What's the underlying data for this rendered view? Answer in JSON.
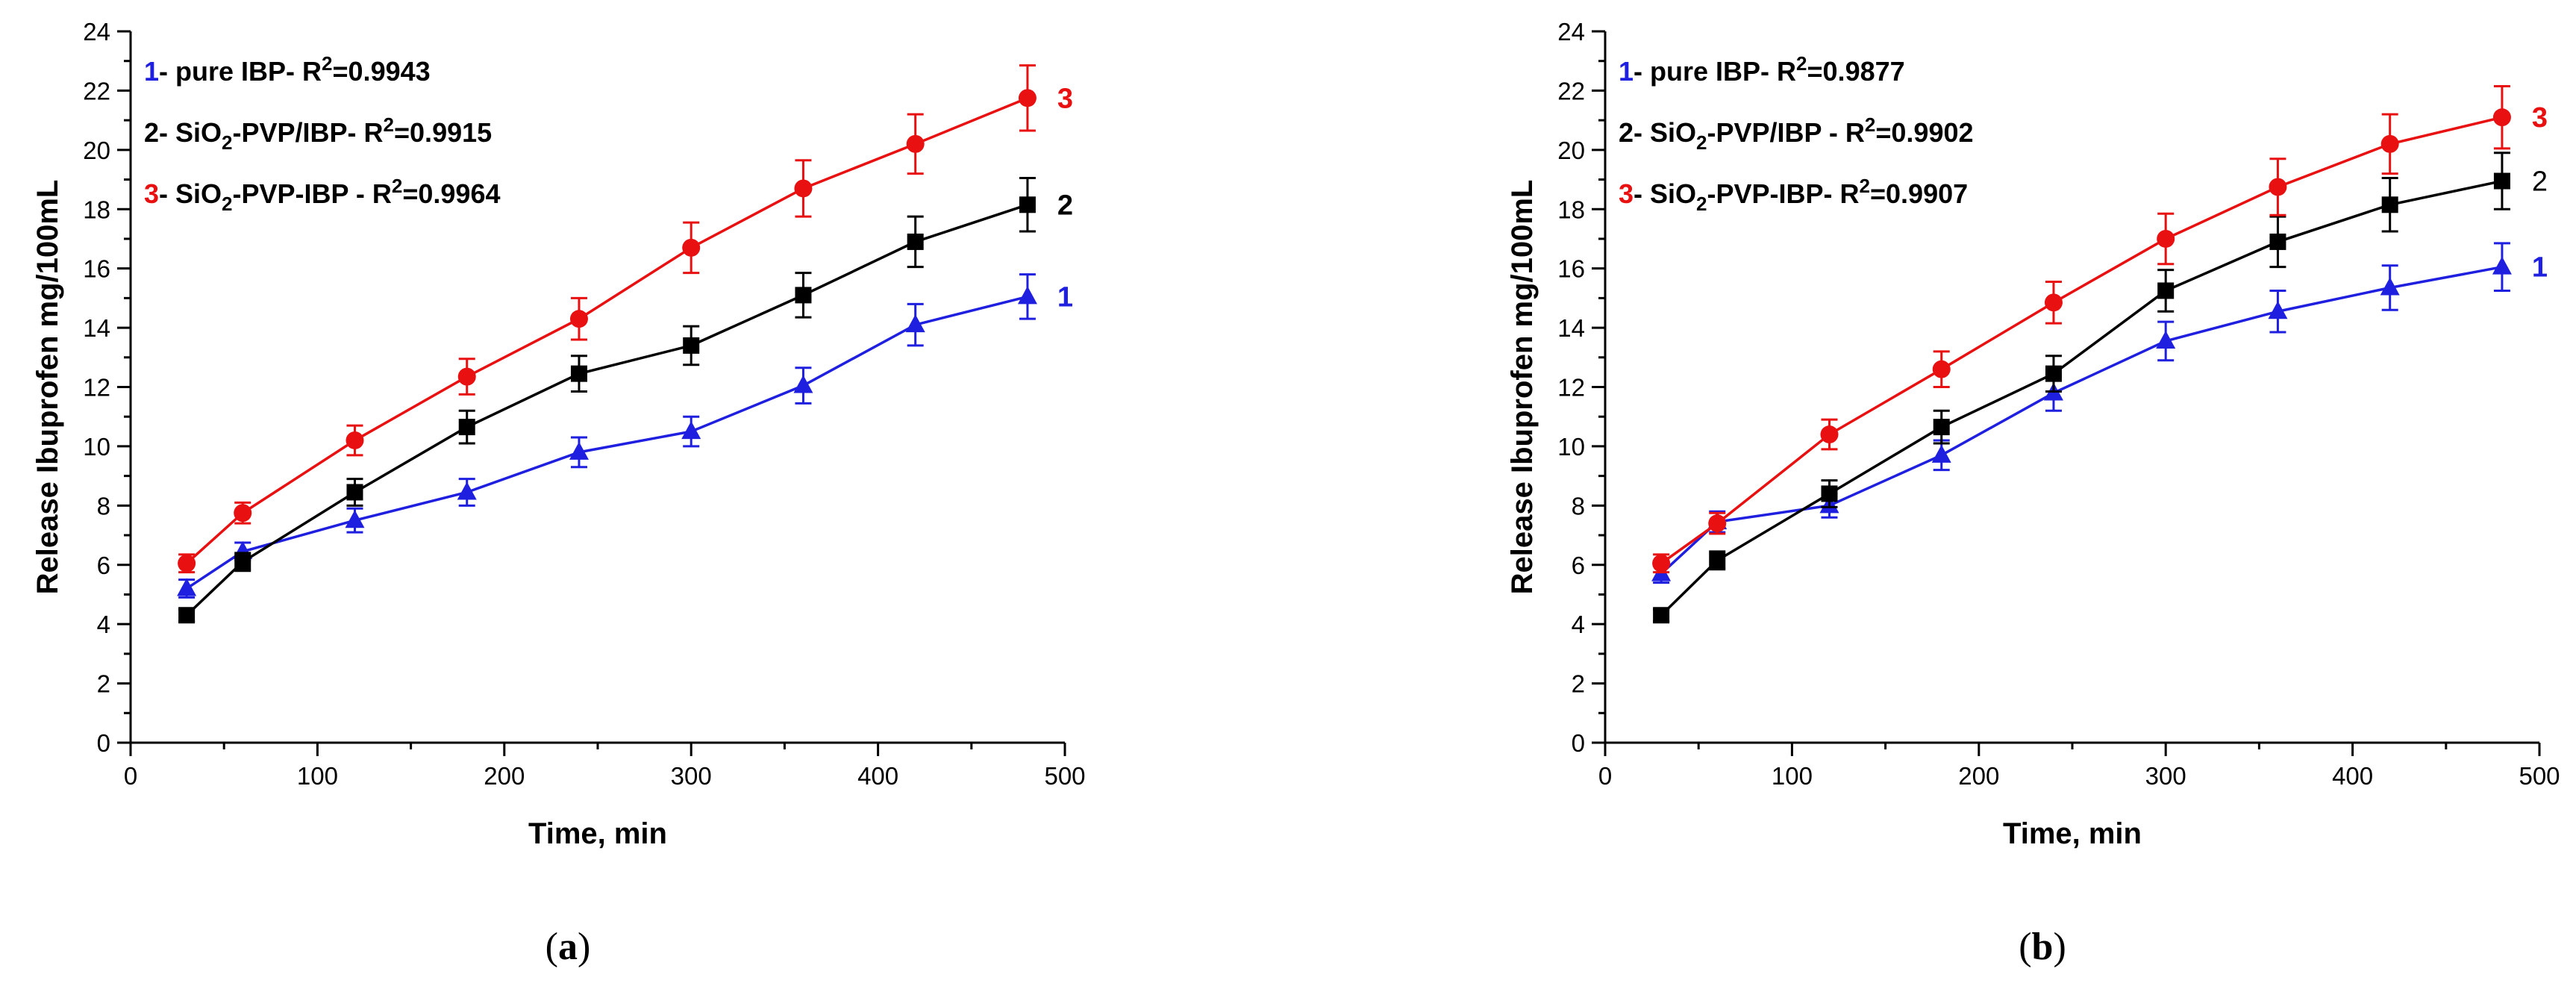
{
  "chart_data": [
    {
      "type": "line",
      "panel_label": "a",
      "xlabel": "Time, min",
      "ylabel": "Release Ibuprofen mg/100mL",
      "xlim": [
        0,
        500
      ],
      "ylim": [
        0,
        24
      ],
      "x_ticks": [
        "0",
        "100",
        "200",
        "300",
        "400",
        "500"
      ],
      "y_ticks": [
        "0",
        "2",
        "4",
        "6",
        "8",
        "10",
        "12",
        "14",
        "16",
        "18",
        "20",
        "22",
        "24"
      ],
      "x": [
        30,
        60,
        120,
        180,
        240,
        300,
        360,
        420,
        480
      ],
      "legend": [
        {
          "num": "1",
          "pre": "- pure IBP- R",
          "sup": "2",
          "post": "=0.9943",
          "num_color": "#1f1fe0"
        },
        {
          "num": "2",
          "pre": "- SiO",
          "sub": "2",
          "mid": "-PVP/IBP- R",
          "sup": "2",
          "post": "=0.9915",
          "num_color": "#000000"
        },
        {
          "num": "3",
          "pre": "- SiO",
          "sub": "2",
          "mid": "-PVP-IBP - R",
          "sup": "2",
          "post": "=0.9964",
          "num_color": "#e81010"
        }
      ],
      "series": [
        {
          "name": "1",
          "end_label": "1",
          "marker": "triangle",
          "color": "#1f1fe0",
          "values": [
            5.2,
            6.45,
            7.5,
            8.45,
            9.8,
            10.5,
            12.05,
            14.1,
            15.05
          ],
          "errors": [
            0.3,
            0.3,
            0.4,
            0.45,
            0.5,
            0.5,
            0.6,
            0.7,
            0.75
          ]
        },
        {
          "name": "2",
          "end_label": "2",
          "marker": "square",
          "color": "#000000",
          "values": [
            4.3,
            6.1,
            8.45,
            10.65,
            12.45,
            13.4,
            15.1,
            16.9,
            18.15
          ],
          "errors": [
            0.2,
            0.3,
            0.45,
            0.55,
            0.6,
            0.65,
            0.75,
            0.85,
            0.9
          ]
        },
        {
          "name": "3",
          "end_label": "3",
          "marker": "circle",
          "color": "#e81010",
          "values": [
            6.05,
            7.75,
            10.2,
            12.35,
            14.3,
            16.7,
            18.7,
            20.2,
            21.75
          ],
          "errors": [
            0.3,
            0.35,
            0.5,
            0.6,
            0.7,
            0.85,
            0.95,
            1.0,
            1.1
          ]
        }
      ]
    },
    {
      "type": "line",
      "panel_label": "b",
      "xlabel": "Time, min",
      "ylabel": "Release Ibuprofen mg/100mL",
      "xlim": [
        0,
        500
      ],
      "ylim": [
        0,
        24
      ],
      "x_ticks": [
        "0",
        "100",
        "200",
        "300",
        "400",
        "500"
      ],
      "y_ticks": [
        "0",
        "2",
        "4",
        "6",
        "8",
        "10",
        "12",
        "14",
        "16",
        "18",
        "20",
        "22",
        "24"
      ],
      "x": [
        30,
        60,
        120,
        180,
        240,
        300,
        360,
        420,
        480
      ],
      "legend": [
        {
          "num": "1",
          "pre": "- pure IBP- R",
          "sup": "2",
          "post": "=0.9877",
          "num_color": "#1f1fe0"
        },
        {
          "num": "2",
          "pre": "- SiO",
          "sub": "2",
          "mid": "-PVP/IBP - R",
          "sup": "2",
          "post": "=0.9902",
          "num_color": "#000000"
        },
        {
          "num": "3",
          "pre": "- SiO",
          "sub": "2",
          "mid": "-PVP-IBP- R",
          "sup": "2",
          "post": "=0.9907",
          "num_color": "#e81010"
        }
      ],
      "series": [
        {
          "name": "1",
          "end_label": "1",
          "marker": "triangle",
          "color": "#1f1fe0",
          "values": [
            5.7,
            7.45,
            8.0,
            9.7,
            11.8,
            13.55,
            14.55,
            15.35,
            16.05
          ],
          "errors": [
            0.3,
            0.35,
            0.4,
            0.5,
            0.6,
            0.65,
            0.7,
            0.75,
            0.8
          ]
        },
        {
          "name": "2",
          "end_label": "2",
          "marker": "square",
          "color": "#000000",
          "values": [
            4.3,
            6.15,
            8.4,
            10.65,
            12.45,
            15.25,
            16.9,
            18.15,
            18.95
          ],
          "errors": [
            0.2,
            0.3,
            0.45,
            0.55,
            0.6,
            0.7,
            0.85,
            0.9,
            0.95
          ]
        },
        {
          "name": "3",
          "end_label": "3",
          "marker": "circle",
          "color": "#e81010",
          "values": [
            6.05,
            7.4,
            10.4,
            12.6,
            14.85,
            17.0,
            18.75,
            20.2,
            21.1
          ],
          "errors": [
            0.3,
            0.35,
            0.5,
            0.6,
            0.7,
            0.85,
            0.95,
            1.0,
            1.05
          ]
        }
      ]
    }
  ]
}
